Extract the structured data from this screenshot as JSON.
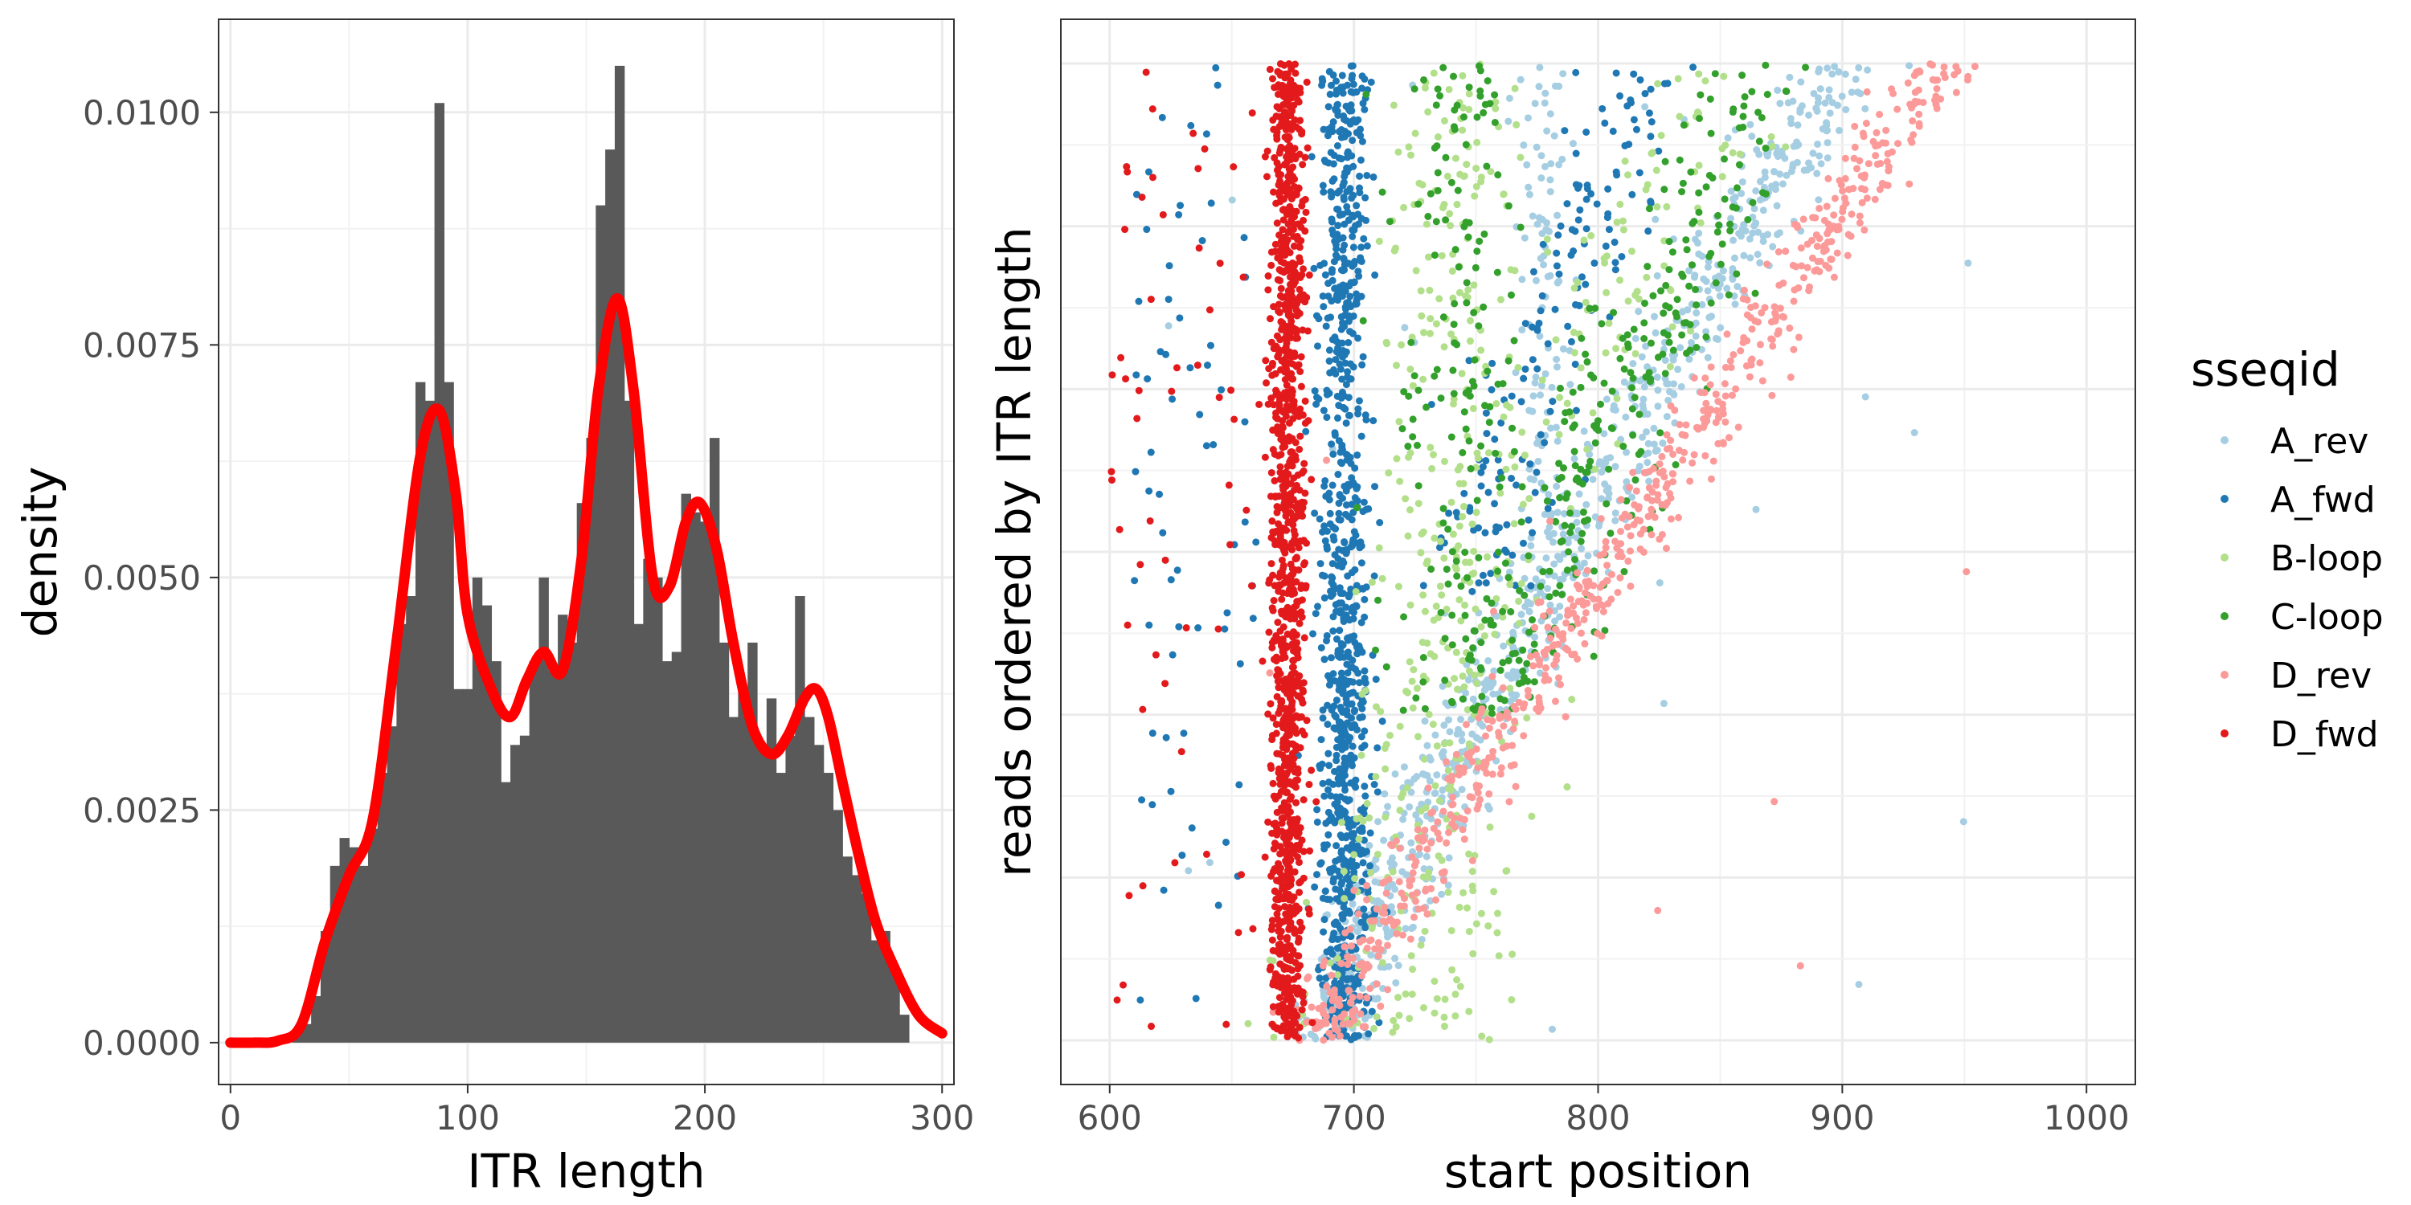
{
  "chart_data": [
    {
      "type": "bar",
      "subtype": "histogram-with-density",
      "xlabel": "ITR length",
      "ylabel": "density",
      "xlim": [
        -5,
        305
      ],
      "ylim": [
        -0.00045,
        0.011
      ],
      "x_ticks": [
        0,
        100,
        200,
        300
      ],
      "x_tick_labels": [
        "0",
        "100",
        "200",
        "300"
      ],
      "y_ticks": [
        0,
        0.0025,
        0.005,
        0.0075,
        0.01
      ],
      "y_tick_labels": [
        "0.0000",
        "0.0025",
        "0.0050",
        "0.0075",
        "0.0100"
      ],
      "grid": true,
      "bar_color": "#595959",
      "density_color": "#ff0000",
      "bin_width": 4,
      "bins": [
        [
          28,
          0.0001
        ],
        [
          32,
          0.0002
        ],
        [
          36,
          0.0005
        ],
        [
          40,
          0.0012
        ],
        [
          44,
          0.0019
        ],
        [
          48,
          0.0022
        ],
        [
          52,
          0.0021
        ],
        [
          56,
          0.0019
        ],
        [
          60,
          0.0023
        ],
        [
          64,
          0.0029
        ],
        [
          68,
          0.0034
        ],
        [
          72,
          0.0045
        ],
        [
          76,
          0.0048
        ],
        [
          80,
          0.0071
        ],
        [
          84,
          0.0069
        ],
        [
          88,
          0.0101
        ],
        [
          92,
          0.0071
        ],
        [
          96,
          0.0038
        ],
        [
          100,
          0.0038
        ],
        [
          104,
          0.005
        ],
        [
          108,
          0.0047
        ],
        [
          112,
          0.0041
        ],
        [
          116,
          0.0028
        ],
        [
          120,
          0.0032
        ],
        [
          124,
          0.0033
        ],
        [
          128,
          0.0041
        ],
        [
          132,
          0.005
        ],
        [
          136,
          0.004
        ],
        [
          140,
          0.0046
        ],
        [
          144,
          0.0043
        ],
        [
          148,
          0.0058
        ],
        [
          152,
          0.0065
        ],
        [
          156,
          0.009
        ],
        [
          160,
          0.0096
        ],
        [
          164,
          0.0105
        ],
        [
          168,
          0.0069
        ],
        [
          172,
          0.0045
        ],
        [
          176,
          0.0052
        ],
        [
          180,
          0.005
        ],
        [
          184,
          0.0041
        ],
        [
          188,
          0.0042
        ],
        [
          192,
          0.0059
        ],
        [
          196,
          0.0057
        ],
        [
          200,
          0.0056
        ],
        [
          204,
          0.0065
        ],
        [
          208,
          0.0043
        ],
        [
          212,
          0.0035
        ],
        [
          216,
          0.0038
        ],
        [
          220,
          0.0043
        ],
        [
          224,
          0.0032
        ],
        [
          228,
          0.0037
        ],
        [
          232,
          0.0029
        ],
        [
          236,
          0.0033
        ],
        [
          240,
          0.0048
        ],
        [
          244,
          0.0035
        ],
        [
          248,
          0.0032
        ],
        [
          252,
          0.0029
        ],
        [
          256,
          0.0025
        ],
        [
          260,
          0.002
        ],
        [
          264,
          0.0018
        ],
        [
          268,
          0.0016
        ],
        [
          272,
          0.0011
        ],
        [
          276,
          0.0012
        ],
        [
          280,
          0.0008
        ],
        [
          284,
          0.0003
        ]
      ],
      "density_curve": [
        [
          0,
          0.0
        ],
        [
          10,
          0.0
        ],
        [
          20,
          2e-05
        ],
        [
          30,
          0.0002
        ],
        [
          40,
          0.0011
        ],
        [
          50,
          0.0018
        ],
        [
          60,
          0.0024
        ],
        [
          70,
          0.0043
        ],
        [
          80,
          0.0063
        ],
        [
          88,
          0.0068
        ],
        [
          95,
          0.0059
        ],
        [
          100,
          0.0046
        ],
        [
          110,
          0.0038
        ],
        [
          118,
          0.0035
        ],
        [
          125,
          0.0039
        ],
        [
          132,
          0.0042
        ],
        [
          140,
          0.004
        ],
        [
          148,
          0.0052
        ],
        [
          155,
          0.007
        ],
        [
          163,
          0.008
        ],
        [
          170,
          0.007
        ],
        [
          178,
          0.005
        ],
        [
          185,
          0.0049
        ],
        [
          192,
          0.0056
        ],
        [
          198,
          0.0058
        ],
        [
          205,
          0.0053
        ],
        [
          212,
          0.0043
        ],
        [
          220,
          0.0034
        ],
        [
          228,
          0.0031
        ],
        [
          235,
          0.0033
        ],
        [
          242,
          0.0037
        ],
        [
          247,
          0.0038
        ],
        [
          252,
          0.0035
        ],
        [
          258,
          0.0028
        ],
        [
          265,
          0.002
        ],
        [
          272,
          0.0013
        ],
        [
          280,
          0.0008
        ],
        [
          290,
          0.0003
        ],
        [
          300,
          0.0001
        ]
      ]
    },
    {
      "type": "scatter",
      "xlabel": "start position",
      "ylabel": "reads ordered by ITR length",
      "xlim": [
        580,
        1020
      ],
      "ylim": [
        0,
        1
      ],
      "x_ticks": [
        600,
        700,
        800,
        900,
        1000
      ],
      "x_tick_labels": [
        "600",
        "700",
        "800",
        "900",
        "1000"
      ],
      "grid": true,
      "legend_title": "sseqid",
      "legend_position": "right",
      "series": [
        {
          "name": "A_rev",
          "color": "#a6cee3",
          "points": 900
        },
        {
          "name": "A_fwd",
          "color": "#1f78b4",
          "points": 1150
        },
        {
          "name": "B-loop",
          "color": "#b2df8a",
          "points": 500
        },
        {
          "name": "C-loop",
          "color": "#33a02c",
          "points": 650
        },
        {
          "name": "D_rev",
          "color": "#fb9a99",
          "points": 700
        },
        {
          "name": "D_fwd",
          "color": "#e31a1c",
          "points": 1200
        }
      ]
    }
  ]
}
